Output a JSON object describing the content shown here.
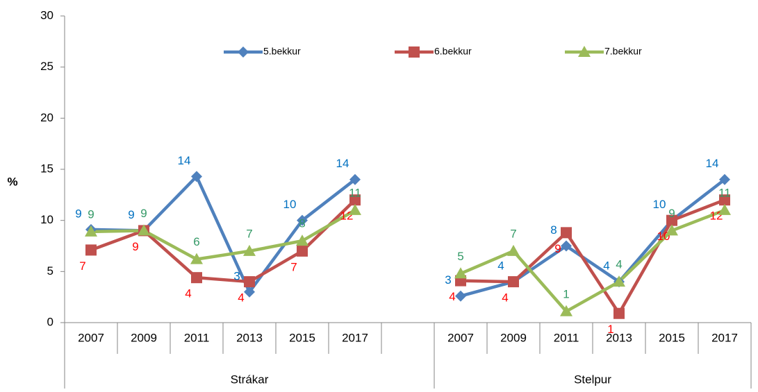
{
  "chart_data": {
    "type": "line",
    "ylabel": "%",
    "categories": [
      "2007",
      "2009",
      "2011",
      "2013",
      "2015",
      "2017",
      null,
      "2007",
      "2009",
      "2011",
      "2013",
      "2015",
      "2017"
    ],
    "groups": [
      {
        "name": "Strákar",
        "start": 0,
        "end": 6
      },
      {
        "name": "Stelpur",
        "start": 7,
        "end": 12
      }
    ],
    "ylim": [
      0,
      30
    ],
    "yticks": [
      0,
      5,
      10,
      15,
      20,
      25,
      30
    ],
    "legend": "top",
    "series": [
      {
        "name": "5.bekkur",
        "color": "#4F81BD",
        "label_color": "#0070C0",
        "marker": "diamond",
        "values": [
          9.1,
          9,
          14.3,
          3,
          10,
          14,
          null,
          2.6,
          4,
          7.5,
          4,
          10,
          14
        ],
        "value_labels": [
          "9",
          "9",
          "14",
          "3",
          "10",
          "14",
          null,
          "3",
          "4",
          "8",
          "4",
          "10",
          "14"
        ]
      },
      {
        "name": "6.bekkur",
        "color": "#C0504D",
        "label_color": "#FF0000",
        "marker": "square",
        "values": [
          7.1,
          9,
          4.4,
          4,
          7,
          12,
          null,
          4.1,
          4,
          8.8,
          0.9,
          10,
          12
        ],
        "value_labels": [
          "7",
          "9",
          "4",
          "4",
          "7",
          "12",
          null,
          "4",
          "4",
          "9",
          "1",
          "10",
          "12"
        ]
      },
      {
        "name": "7.bekkur",
        "color": "#9BBB59",
        "label_color": "#339966",
        "marker": "triangle",
        "values": [
          8.9,
          9,
          6.2,
          7,
          8,
          11,
          null,
          4.8,
          7,
          1.1,
          4,
          9,
          11
        ],
        "value_labels": [
          "9",
          "9",
          "6",
          "7",
          "8",
          "11",
          null,
          "5",
          "7",
          "1",
          "4",
          "9",
          "11"
        ]
      }
    ]
  }
}
